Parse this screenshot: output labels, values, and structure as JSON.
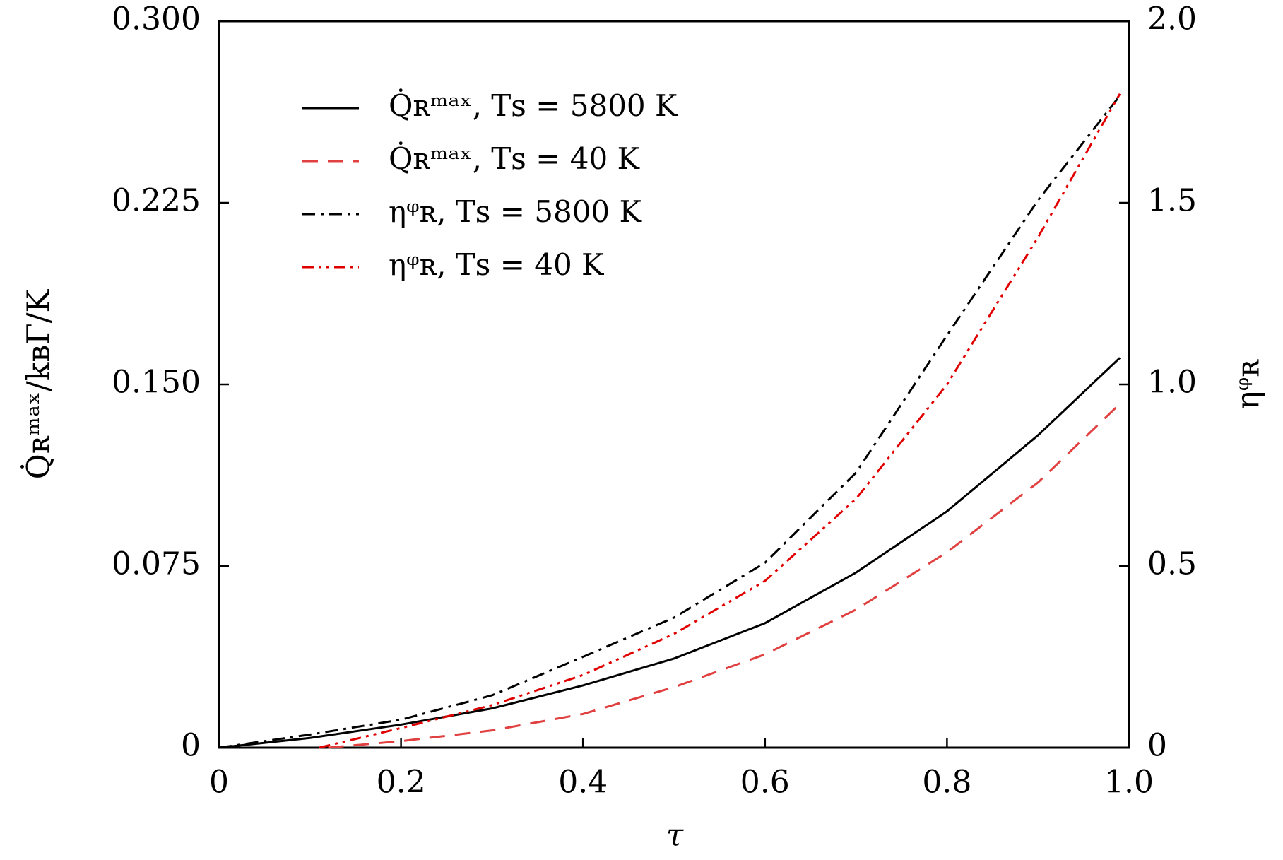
{
  "chart_data": {
    "type": "line",
    "xlabel": "τ",
    "ylabel": "Q̇ʀᵐᵃˣ/kʙΓ/K",
    "y2label": "ηᵠʀ",
    "xlim": [
      0,
      1
    ],
    "xticks": [
      0,
      0.2,
      0.4,
      0.6,
      0.8,
      {
        "value": 1,
        "label": "1.0"
      }
    ],
    "ylim": [
      0,
      0.3
    ],
    "yticks": [
      0,
      0.075,
      {
        "value": 0.15,
        "label": "0.150"
      },
      0.225,
      {
        "value": 0.3,
        "label": "0.300"
      }
    ],
    "y2lim": [
      0,
      2
    ],
    "y2ticks": [
      0,
      0.5,
      {
        "value": 1,
        "label": "1.0"
      },
      1.5,
      {
        "value": 2,
        "label": "2.0"
      }
    ],
    "legend": "upper left",
    "series": [
      {
        "name": "Q̇ʀᵐᵃˣ, Tꜱ = 5800 K",
        "color": "#000000",
        "style": "solid",
        "x": [
          0,
          0.1,
          0.2,
          0.3,
          0.4,
          0.5,
          0.6,
          0.7,
          0.8,
          0.9,
          0.99
        ],
        "values": [
          0,
          0.004,
          0.0095,
          0.0162,
          0.0257,
          0.0368,
          0.0514,
          0.0723,
          0.0976,
          0.129,
          0.161
        ]
      },
      {
        "name": "Q̇ʀᵐᵃˣ, Tꜱ = 40 K",
        "color": "#e04040",
        "style": "dashed",
        "x": [
          0.12,
          0.2,
          0.3,
          0.4,
          0.5,
          0.6,
          0.7,
          0.8,
          0.9,
          0.99
        ],
        "values": [
          0,
          0.0027,
          0.0071,
          0.0139,
          0.025,
          0.0385,
          0.057,
          0.0807,
          0.1095,
          0.142
        ]
      },
      {
        "name": "ηᵠʀ, Tꜱ = 5800 K",
        "color": "#000000",
        "style": "dashdot",
        "axis": "y2",
        "x": [
          0,
          0.1,
          0.2,
          0.3,
          0.4,
          0.5,
          0.6,
          0.7,
          0.8,
          0.9,
          0.99
        ],
        "values": [
          0,
          0.036,
          0.077,
          0.144,
          0.25,
          0.358,
          0.509,
          0.757,
          1.135,
          1.507,
          1.795
        ]
      },
      {
        "name": "ηᵠʀ, Tꜱ = 40 K",
        "color": "#e00000",
        "style": "dashdotdot",
        "axis": "y2",
        "x": [
          0.11,
          0.2,
          0.3,
          0.4,
          0.5,
          0.6,
          0.7,
          0.8,
          0.9,
          0.99
        ],
        "values": [
          0,
          0.054,
          0.117,
          0.2,
          0.313,
          0.459,
          0.685,
          1.0,
          1.405,
          1.8
        ]
      }
    ]
  }
}
